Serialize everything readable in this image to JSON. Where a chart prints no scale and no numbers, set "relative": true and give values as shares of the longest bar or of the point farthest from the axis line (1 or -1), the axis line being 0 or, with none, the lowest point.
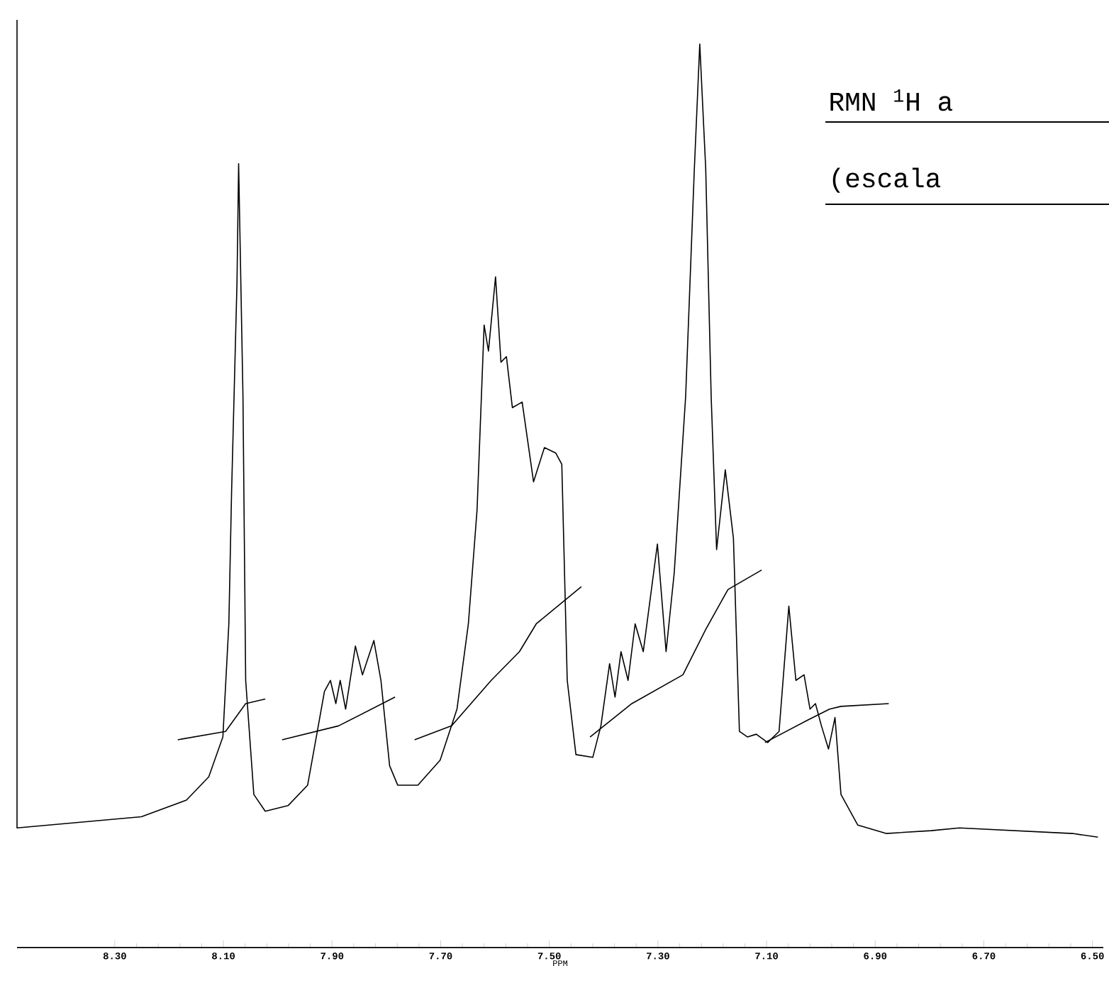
{
  "chart_data": {
    "type": "line",
    "title": "RMN $^{1}$H a",
    "subtitle": "(escala",
    "xlabel": "PPM",
    "relative": true,
    "xlim": [
      8.48,
      6.48
    ],
    "xticks": [
      {
        "value": 8.3,
        "label": "8.30"
      },
      {
        "value": 8.1,
        "label": "8.10"
      },
      {
        "value": 7.9,
        "label": "7.90"
      },
      {
        "value": 7.7,
        "label": "7.70"
      },
      {
        "value": 7.5,
        "label": "7.50"
      },
      {
        "value": 7.3,
        "label": "7.30"
      },
      {
        "value": 7.1,
        "label": "7.10"
      },
      {
        "value": 6.9,
        "label": "6.90"
      },
      {
        "value": 6.7,
        "label": "6.70"
      },
      {
        "value": 6.5,
        "label": "6.50"
      }
    ],
    "grid": false,
    "marker": "none",
    "line_style": "solid",
    "series": [
      {
        "color": "#000000",
        "x": [
          8.48,
          8.48,
          8.251,
          8.168,
          8.127,
          8.101,
          8.09,
          8.085,
          8.075,
          8.072,
          8.064,
          8.059,
          8.044,
          8.023,
          7.981,
          7.945,
          7.929,
          7.914,
          7.903,
          7.893,
          7.885,
          7.875,
          7.857,
          7.844,
          7.823,
          7.81,
          7.794,
          7.779,
          7.742,
          7.701,
          7.67,
          7.649,
          7.633,
          7.62,
          7.612,
          7.599,
          7.589,
          7.579,
          7.568,
          7.55,
          7.529,
          7.509,
          7.488,
          7.477,
          7.467,
          7.451,
          7.42,
          7.405,
          7.389,
          7.379,
          7.368,
          7.355,
          7.342,
          7.327,
          7.301,
          7.285,
          7.27,
          7.249,
          7.233,
          7.223,
          7.212,
          7.202,
          7.192,
          7.176,
          7.161,
          7.15,
          7.135,
          7.119,
          7.098,
          7.077,
          7.059,
          7.046,
          7.031,
          7.02,
          7.01,
          6.999,
          6.986,
          6.974,
          6.963,
          6.932,
          6.88,
          6.797,
          6.745,
          6.537,
          6.49
        ],
        "values": [
          1.0,
          0.129,
          0.141,
          0.159,
          0.184,
          0.227,
          0.349,
          0.49,
          0.717,
          0.845,
          0.594,
          0.288,
          0.165,
          0.147,
          0.153,
          0.175,
          0.227,
          0.276,
          0.288,
          0.263,
          0.288,
          0.257,
          0.325,
          0.294,
          0.331,
          0.288,
          0.196,
          0.175,
          0.175,
          0.202,
          0.257,
          0.349,
          0.472,
          0.671,
          0.643,
          0.723,
          0.631,
          0.637,
          0.582,
          0.588,
          0.502,
          0.539,
          0.533,
          0.521,
          0.288,
          0.208,
          0.205,
          0.239,
          0.306,
          0.27,
          0.319,
          0.288,
          0.349,
          0.319,
          0.435,
          0.319,
          0.404,
          0.594,
          0.839,
          0.974,
          0.839,
          0.594,
          0.429,
          0.515,
          0.441,
          0.233,
          0.227,
          0.23,
          0.221,
          0.233,
          0.368,
          0.288,
          0.294,
          0.257,
          0.263,
          0.239,
          0.214,
          0.248,
          0.165,
          0.132,
          0.123,
          0.126,
          0.129,
          0.123,
          0.119
        ]
      },
      {
        "color": "#000000",
        "x": [
          8.184,
          8.096,
          8.059,
          8.023
        ],
        "values": [
          0.224,
          0.233,
          0.263,
          0.268
        ]
      },
      {
        "color": "#000000",
        "x": [
          7.992,
          7.888,
          7.784
        ],
        "values": [
          0.224,
          0.239,
          0.27
        ]
      },
      {
        "color": "#000000",
        "x": [
          7.748,
          7.68,
          7.607,
          7.555,
          7.524,
          7.441
        ],
        "values": [
          0.224,
          0.239,
          0.288,
          0.319,
          0.349,
          0.389
        ]
      },
      {
        "color": "#000000",
        "x": [
          7.425,
          7.348,
          7.254,
          7.212,
          7.171,
          7.109
        ],
        "values": [
          0.227,
          0.263,
          0.294,
          0.343,
          0.386,
          0.407
        ]
      },
      {
        "color": "#000000",
        "x": [
          7.103,
          7.025,
          6.984,
          6.963,
          6.875
        ],
        "values": [
          0.221,
          0.245,
          0.257,
          0.26,
          0.263
        ]
      }
    ]
  }
}
